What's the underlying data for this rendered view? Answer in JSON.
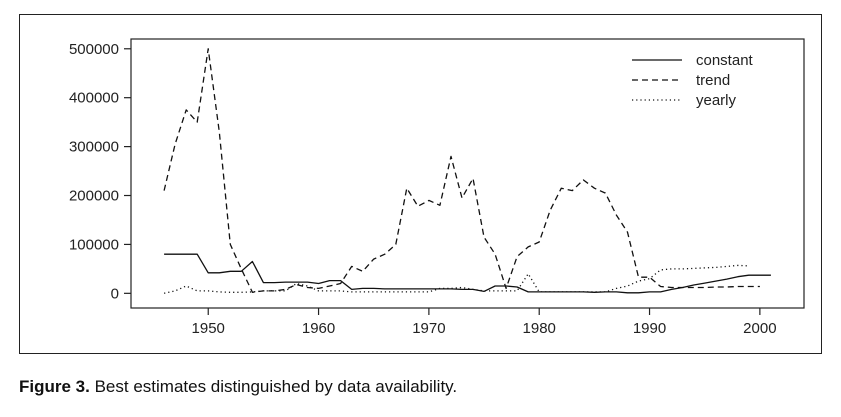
{
  "caption": {
    "label": "Figure 3.",
    "text": " Best estimates distinguished by data availability."
  },
  "chart_data": {
    "type": "line",
    "xlim": [
      1943,
      2004
    ],
    "ylim": [
      -30000,
      520000
    ],
    "x_ticks": [
      1950,
      1960,
      1970,
      1980,
      1990,
      2000
    ],
    "y_ticks": [
      0,
      100000,
      200000,
      300000,
      400000,
      500000
    ],
    "x_tick_labels": [
      "1950",
      "1960",
      "1970",
      "1980",
      "1990",
      "2000"
    ],
    "y_tick_labels": [
      "0",
      "100000",
      "200000",
      "300000",
      "400000",
      "500000"
    ],
    "grid": false,
    "legend_position": "top-right",
    "series": [
      {
        "name": "constant",
        "style": "solid",
        "color": "#111111",
        "points": [
          [
            1946,
            80000
          ],
          [
            1947,
            80000
          ],
          [
            1948,
            80000
          ],
          [
            1949,
            80000
          ],
          [
            1950,
            42000
          ],
          [
            1951,
            42000
          ],
          [
            1952,
            45000
          ],
          [
            1953,
            45000
          ],
          [
            1954,
            65000
          ],
          [
            1955,
            22000
          ],
          [
            1956,
            22000
          ],
          [
            1957,
            23000
          ],
          [
            1958,
            23000
          ],
          [
            1959,
            23000
          ],
          [
            1960,
            20000
          ],
          [
            1961,
            26000
          ],
          [
            1962,
            26000
          ],
          [
            1963,
            8000
          ],
          [
            1964,
            10000
          ],
          [
            1965,
            10000
          ],
          [
            1966,
            9000
          ],
          [
            1967,
            9000
          ],
          [
            1968,
            9000
          ],
          [
            1969,
            9000
          ],
          [
            1970,
            9000
          ],
          [
            1971,
            9000
          ],
          [
            1972,
            9000
          ],
          [
            1973,
            8000
          ],
          [
            1974,
            8000
          ],
          [
            1975,
            4000
          ],
          [
            1976,
            15000
          ],
          [
            1977,
            15000
          ],
          [
            1978,
            13000
          ],
          [
            1979,
            3000
          ],
          [
            1980,
            3000
          ],
          [
            1981,
            3000
          ],
          [
            1982,
            3000
          ],
          [
            1983,
            3000
          ],
          [
            1984,
            3000
          ],
          [
            1985,
            2000
          ],
          [
            1986,
            3000
          ],
          [
            1987,
            3000
          ],
          [
            1988,
            1000
          ],
          [
            1989,
            1000
          ],
          [
            1990,
            3000
          ],
          [
            1991,
            3000
          ],
          [
            1992,
            8000
          ],
          [
            1993,
            12000
          ],
          [
            1994,
            17000
          ],
          [
            1995,
            21000
          ],
          [
            1996,
            25000
          ],
          [
            1997,
            29000
          ],
          [
            1998,
            34000
          ],
          [
            1999,
            37000
          ],
          [
            2000,
            37000
          ],
          [
            2001,
            37000
          ]
        ]
      },
      {
        "name": "trend",
        "style": "dashed",
        "color": "#111111",
        "points": [
          [
            1946,
            210000
          ],
          [
            1947,
            305000
          ],
          [
            1948,
            375000
          ],
          [
            1949,
            350000
          ],
          [
            1950,
            500000
          ],
          [
            1951,
            330000
          ],
          [
            1952,
            100000
          ],
          [
            1953,
            50000
          ],
          [
            1954,
            2000
          ],
          [
            1955,
            5000
          ],
          [
            1956,
            5000
          ],
          [
            1957,
            8000
          ],
          [
            1958,
            18000
          ],
          [
            1959,
            12000
          ],
          [
            1960,
            10000
          ],
          [
            1961,
            15000
          ],
          [
            1962,
            20000
          ],
          [
            1963,
            55000
          ],
          [
            1964,
            45000
          ],
          [
            1965,
            70000
          ],
          [
            1966,
            80000
          ],
          [
            1967,
            100000
          ],
          [
            1968,
            215000
          ],
          [
            1969,
            178000
          ],
          [
            1970,
            190000
          ],
          [
            1971,
            180000
          ],
          [
            1972,
            280000
          ],
          [
            1973,
            195000
          ],
          [
            1974,
            235000
          ],
          [
            1975,
            115000
          ],
          [
            1976,
            80000
          ],
          [
            1977,
            10000
          ],
          [
            1978,
            75000
          ],
          [
            1979,
            95000
          ],
          [
            1980,
            105000
          ],
          [
            1981,
            170000
          ],
          [
            1982,
            215000
          ],
          [
            1983,
            210000
          ],
          [
            1984,
            232000
          ],
          [
            1985,
            215000
          ],
          [
            1986,
            205000
          ],
          [
            1987,
            160000
          ],
          [
            1988,
            125000
          ],
          [
            1989,
            33000
          ],
          [
            1990,
            33000
          ],
          [
            1991,
            14000
          ],
          [
            1992,
            12000
          ],
          [
            1993,
            12000
          ],
          [
            1994,
            12000
          ],
          [
            1995,
            12000
          ],
          [
            1996,
            13000
          ],
          [
            1997,
            13000
          ],
          [
            1998,
            14000
          ],
          [
            1999,
            14000
          ],
          [
            2000,
            14000
          ]
        ]
      },
      {
        "name": "yearly",
        "style": "dotted",
        "color": "#111111",
        "points": [
          [
            1946,
            0
          ],
          [
            1947,
            5000
          ],
          [
            1948,
            15000
          ],
          [
            1949,
            5000
          ],
          [
            1950,
            5000
          ],
          [
            1951,
            3000
          ],
          [
            1952,
            2000
          ],
          [
            1953,
            2000
          ],
          [
            1954,
            3000
          ],
          [
            1955,
            5000
          ],
          [
            1956,
            5000
          ],
          [
            1957,
            5000
          ],
          [
            1958,
            20000
          ],
          [
            1959,
            15000
          ],
          [
            1960,
            5000
          ],
          [
            1961,
            5000
          ],
          [
            1962,
            5000
          ],
          [
            1963,
            3000
          ],
          [
            1964,
            3000
          ],
          [
            1965,
            3000
          ],
          [
            1966,
            3000
          ],
          [
            1967,
            3000
          ],
          [
            1968,
            3000
          ],
          [
            1969,
            3000
          ],
          [
            1970,
            3000
          ],
          [
            1971,
            10000
          ],
          [
            1972,
            10000
          ],
          [
            1973,
            12000
          ],
          [
            1974,
            8000
          ],
          [
            1975,
            5000
          ],
          [
            1976,
            5000
          ],
          [
            1977,
            5000
          ],
          [
            1978,
            5000
          ],
          [
            1979,
            40000
          ],
          [
            1980,
            3000
          ],
          [
            1981,
            3000
          ],
          [
            1982,
            3000
          ],
          [
            1983,
            3000
          ],
          [
            1984,
            3000
          ],
          [
            1985,
            3000
          ],
          [
            1986,
            3000
          ],
          [
            1987,
            10000
          ],
          [
            1988,
            15000
          ],
          [
            1989,
            25000
          ],
          [
            1990,
            30000
          ],
          [
            1991,
            48000
          ],
          [
            1992,
            50000
          ],
          [
            1993,
            50000
          ],
          [
            1994,
            51000
          ],
          [
            1995,
            52000
          ],
          [
            1996,
            53000
          ],
          [
            1997,
            55000
          ],
          [
            1998,
            57000
          ],
          [
            1999,
            56000
          ]
        ]
      }
    ]
  }
}
